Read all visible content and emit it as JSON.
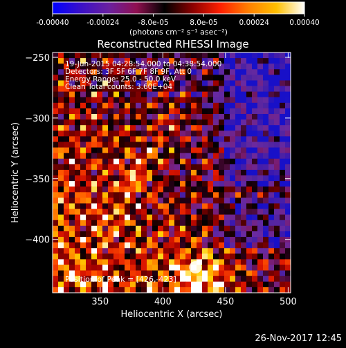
{
  "colorbar": {
    "tick_labels": [
      "-0.00040",
      "-0.00024",
      "-8.0e-05",
      "8.0e-05",
      "0.00024",
      "0.00040"
    ],
    "unit_label": "(photons cm⁻² s⁻¹ asec⁻²)",
    "range": [
      -0.0004,
      0.0004
    ],
    "colors": [
      "#0000ff",
      "#3a10c8",
      "#6a20a0",
      "#901050",
      "#000000",
      "#8b0000",
      "#ff2000",
      "#ff8000",
      "#ffc000",
      "#ffffff"
    ]
  },
  "chart_data": {
    "type": "heatmap",
    "title": "Reconstructed RHESSI Image",
    "xlabel": "Heliocentric X (arcsec)",
    "ylabel": "Heliocentric Y (arcsec)",
    "xlim": [
      312,
      502
    ],
    "ylim": [
      -444,
      -246
    ],
    "xticks": [
      350,
      400,
      450,
      500
    ],
    "yticks": [
      -250,
      -300,
      -350,
      -400
    ],
    "annotations": [
      "19-Jun-2015 04:28:54.000 to 04:38:54.000",
      "Detectors: 3F 5F 6F 7F 8F 9F, Att 0",
      "Energy Range: 25.0 - 50.0 keV",
      "Clean    Total counts: 3.60E+04"
    ],
    "peak_label": "Position of Peak = [426,-423]",
    "peak": [
      426,
      -423
    ],
    "grid": false
  },
  "footer": {
    "date": "26-Nov-2017 12:45"
  }
}
